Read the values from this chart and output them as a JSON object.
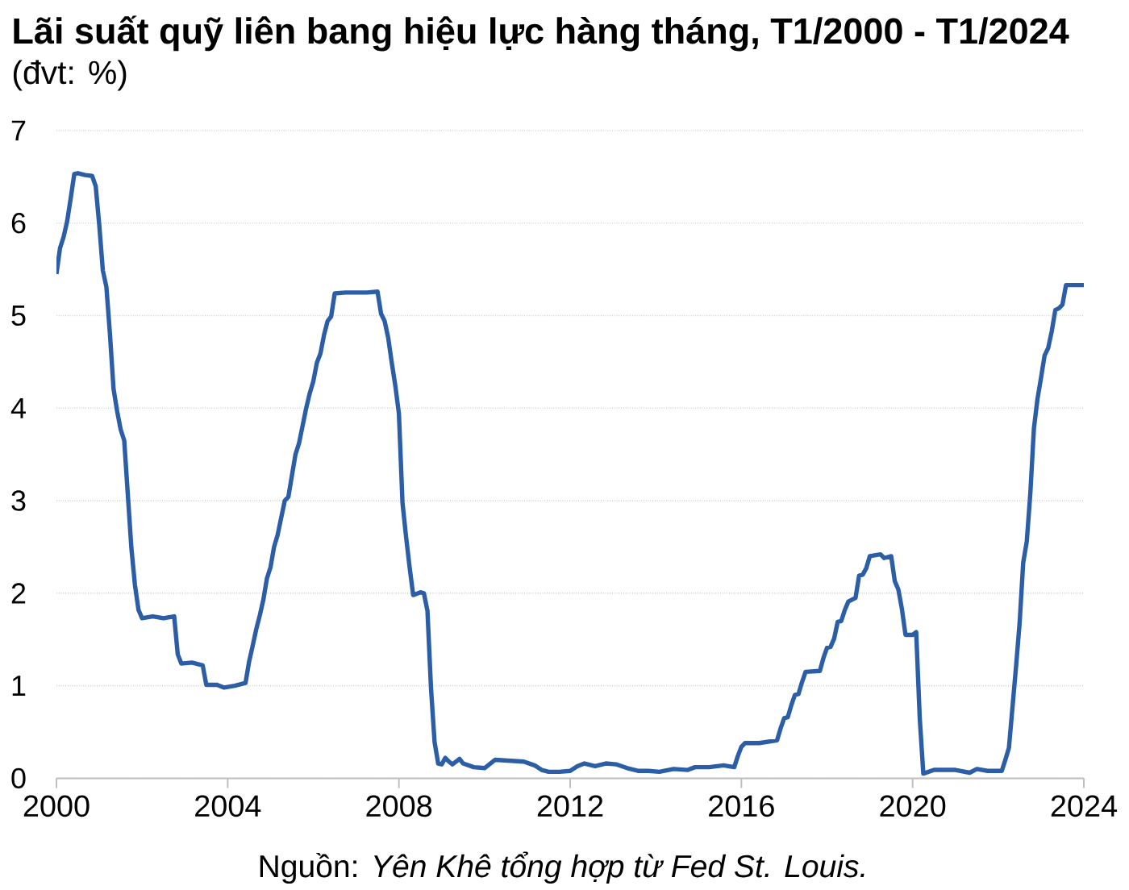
{
  "chart_data": {
    "type": "line",
    "title": "Lãi suất quỹ liên bang hiệu lực hàng tháng, T1/2000 - T1/2024",
    "subtitle": "(đvt: %)",
    "annotations": [
      "Nguồn: *Yên Khê tổng hợp từ Fed St. Louis.*"
    ],
    "x": [
      "2000-01",
      "2000-02",
      "2000-03",
      "2000-04",
      "2000-05",
      "2000-06",
      "2000-07",
      "2000-09",
      "2000-11",
      "2000-12",
      "2001-01",
      "2001-02",
      "2001-03",
      "2001-04",
      "2001-05",
      "2001-06",
      "2001-07",
      "2001-08",
      "2001-09",
      "2001-10",
      "2001-11",
      "2001-12",
      "2002-01",
      "2002-04",
      "2002-07",
      "2002-10",
      "2002-11",
      "2002-12",
      "2003-03",
      "2003-06",
      "2003-07",
      "2003-10",
      "2003-12",
      "2004-03",
      "2004-06",
      "2004-07",
      "2004-08",
      "2004-09",
      "2004-10",
      "2004-11",
      "2004-12",
      "2005-01",
      "2005-02",
      "2005-03",
      "2005-05",
      "2005-06",
      "2005-08",
      "2005-09",
      "2005-11",
      "2005-12",
      "2006-01",
      "2006-02",
      "2006-03",
      "2006-04",
      "2006-05",
      "2006-06",
      "2006-07",
      "2006-10",
      "2007-01",
      "2007-04",
      "2007-07",
      "2007-08",
      "2007-09",
      "2007-10",
      "2007-11",
      "2007-12",
      "2008-01",
      "2008-02",
      "2008-03",
      "2008-04",
      "2008-05",
      "2008-07",
      "2008-08",
      "2008-09",
      "2008-10",
      "2008-11",
      "2008-12",
      "2009-01",
      "2009-02",
      "2009-03",
      "2009-04",
      "2009-06",
      "2009-07",
      "2009-10",
      "2010-01",
      "2010-04",
      "2010-08",
      "2010-12",
      "2011-03",
      "2011-05",
      "2011-07",
      "2011-10",
      "2012-01",
      "2012-03",
      "2012-05",
      "2012-08",
      "2012-11",
      "2013-02",
      "2013-05",
      "2013-08",
      "2013-11",
      "2014-02",
      "2014-06",
      "2014-10",
      "2014-12",
      "2015-04",
      "2015-08",
      "2015-11",
      "2015-12",
      "2016-01",
      "2016-02",
      "2016-06",
      "2016-11",
      "2016-12",
      "2017-01",
      "2017-02",
      "2017-03",
      "2017-04",
      "2017-05",
      "2017-06",
      "2017-07",
      "2017-11",
      "2017-12",
      "2018-01",
      "2018-02",
      "2018-03",
      "2018-04",
      "2018-05",
      "2018-06",
      "2018-07",
      "2018-09",
      "2018-10",
      "2018-11",
      "2018-12",
      "2019-01",
      "2019-04",
      "2019-05",
      "2019-07",
      "2019-08",
      "2019-09",
      "2019-10",
      "2019-11",
      "2020-01",
      "2020-02",
      "2020-03",
      "2020-04",
      "2020-07",
      "2020-10",
      "2021-01",
      "2021-05",
      "2021-07",
      "2021-10",
      "2022-02",
      "2022-03",
      "2022-04",
      "2022-05",
      "2022-06",
      "2022-07",
      "2022-08",
      "2022-09",
      "2022-10",
      "2022-11",
      "2022-12",
      "2023-01",
      "2023-02",
      "2023-03",
      "2023-04",
      "2023-05",
      "2023-06",
      "2023-07",
      "2023-08",
      "2024-01"
    ],
    "values": [
      5.45,
      5.73,
      5.85,
      6.02,
      6.27,
      6.53,
      6.54,
      6.52,
      6.51,
      6.4,
      5.98,
      5.49,
      5.31,
      4.8,
      4.21,
      3.97,
      3.77,
      3.65,
      3.07,
      2.49,
      2.09,
      1.82,
      1.73,
      1.75,
      1.73,
      1.75,
      1.34,
      1.24,
      1.25,
      1.22,
      1.01,
      1.01,
      0.98,
      1.0,
      1.03,
      1.26,
      1.43,
      1.61,
      1.76,
      1.93,
      2.16,
      2.28,
      2.5,
      2.63,
      3.0,
      3.04,
      3.5,
      3.62,
      4.0,
      4.16,
      4.29,
      4.49,
      4.59,
      4.79,
      4.94,
      4.99,
      5.24,
      5.25,
      5.25,
      5.25,
      5.26,
      5.02,
      4.94,
      4.76,
      4.49,
      4.24,
      3.94,
      2.98,
      2.61,
      2.28,
      1.98,
      2.01,
      2.0,
      1.81,
      0.97,
      0.39,
      0.16,
      0.15,
      0.22,
      0.18,
      0.15,
      0.21,
      0.16,
      0.12,
      0.11,
      0.2,
      0.19,
      0.18,
      0.14,
      0.09,
      0.07,
      0.07,
      0.08,
      0.13,
      0.16,
      0.13,
      0.16,
      0.15,
      0.11,
      0.08,
      0.08,
      0.07,
      0.1,
      0.09,
      0.12,
      0.12,
      0.14,
      0.12,
      0.24,
      0.34,
      0.38,
      0.38,
      0.41,
      0.54,
      0.65,
      0.66,
      0.79,
      0.9,
      0.91,
      1.04,
      1.15,
      1.16,
      1.3,
      1.41,
      1.42,
      1.51,
      1.69,
      1.7,
      1.82,
      1.91,
      1.95,
      2.19,
      2.2,
      2.27,
      2.4,
      2.42,
      2.38,
      2.4,
      2.13,
      2.04,
      1.83,
      1.55,
      1.55,
      1.58,
      0.65,
      0.05,
      0.09,
      0.09,
      0.09,
      0.06,
      0.1,
      0.08,
      0.08,
      0.2,
      0.33,
      0.77,
      1.21,
      1.68,
      2.33,
      2.56,
      3.08,
      3.78,
      4.1,
      4.33,
      4.57,
      4.65,
      4.83,
      5.06,
      5.08,
      5.12,
      5.33,
      5.33
    ],
    "color": "#2b5ea7",
    "xlim": [
      "2000-01",
      "2024-01"
    ],
    "xticks": [
      "2000",
      "2004",
      "2008",
      "2012",
      "2016",
      "2020",
      "2024"
    ],
    "ylim": [
      0,
      7
    ],
    "yticks": [
      0,
      1,
      2,
      3,
      4,
      5,
      6,
      7
    ],
    "grid": "y"
  }
}
